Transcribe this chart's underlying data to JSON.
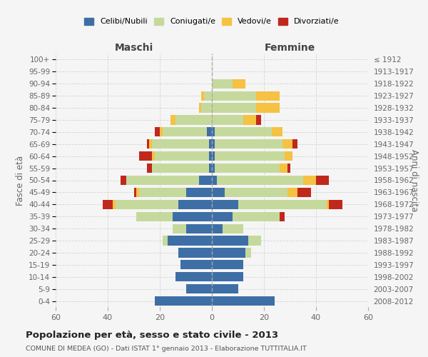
{
  "age_groups": [
    "0-4",
    "5-9",
    "10-14",
    "15-19",
    "20-24",
    "25-29",
    "30-34",
    "35-39",
    "40-44",
    "45-49",
    "50-54",
    "55-59",
    "60-64",
    "65-69",
    "70-74",
    "75-79",
    "80-84",
    "85-89",
    "90-94",
    "95-99",
    "100+"
  ],
  "birth_years": [
    "2008-2012",
    "2003-2007",
    "1998-2002",
    "1993-1997",
    "1988-1992",
    "1983-1987",
    "1978-1982",
    "1973-1977",
    "1968-1972",
    "1963-1967",
    "1958-1962",
    "1953-1957",
    "1948-1952",
    "1943-1947",
    "1938-1942",
    "1933-1937",
    "1928-1932",
    "1923-1927",
    "1918-1922",
    "1913-1917",
    "≤ 1912"
  ],
  "colors": {
    "celibe": "#3e6ea6",
    "coniugato": "#c6d99d",
    "vedovo": "#f5c242",
    "divorziato": "#c0281c"
  },
  "males": {
    "celibe": [
      22,
      10,
      14,
      12,
      13,
      17,
      10,
      15,
      13,
      10,
      5,
      1,
      1,
      1,
      2,
      0,
      0,
      0,
      0,
      0,
      0
    ],
    "coniugato": [
      0,
      0,
      0,
      0,
      0,
      2,
      5,
      14,
      24,
      18,
      28,
      22,
      21,
      22,
      17,
      14,
      4,
      3,
      0,
      0,
      0
    ],
    "vedovo": [
      0,
      0,
      0,
      0,
      0,
      0,
      0,
      0,
      1,
      1,
      0,
      0,
      1,
      1,
      1,
      2,
      1,
      1,
      0,
      0,
      0
    ],
    "divorziato": [
      0,
      0,
      0,
      0,
      0,
      0,
      0,
      0,
      4,
      1,
      2,
      2,
      5,
      1,
      2,
      0,
      0,
      0,
      0,
      0,
      0
    ]
  },
  "females": {
    "nubile": [
      24,
      10,
      12,
      12,
      13,
      14,
      4,
      8,
      10,
      5,
      2,
      1,
      1,
      1,
      1,
      0,
      0,
      0,
      0,
      0,
      0
    ],
    "coniugata": [
      0,
      0,
      0,
      0,
      2,
      5,
      8,
      18,
      34,
      24,
      33,
      25,
      27,
      26,
      22,
      12,
      17,
      17,
      8,
      0,
      0
    ],
    "vedova": [
      0,
      0,
      0,
      0,
      0,
      0,
      0,
      0,
      1,
      4,
      5,
      3,
      3,
      4,
      4,
      5,
      9,
      9,
      5,
      0,
      0
    ],
    "divorziata": [
      0,
      0,
      0,
      0,
      0,
      0,
      0,
      2,
      5,
      5,
      5,
      1,
      0,
      2,
      0,
      2,
      0,
      0,
      0,
      0,
      0
    ]
  },
  "xlim": 60,
  "title": "Popolazione per età, sesso e stato civile - 2013",
  "subtitle": "COMUNE DI MEDEA (GO) - Dati ISTAT 1° gennaio 2013 - Elaborazione TUTTITALIA.IT",
  "xlabel_left": "Maschi",
  "xlabel_right": "Femmine",
  "ylabel_left": "Fasce di età",
  "ylabel_right": "Anni di nascita",
  "legend_labels": [
    "Celibi/Nubili",
    "Coniugati/e",
    "Vedovi/e",
    "Divorziati/e"
  ],
  "background_color": "#f5f5f5",
  "grid_color": "#cccccc"
}
